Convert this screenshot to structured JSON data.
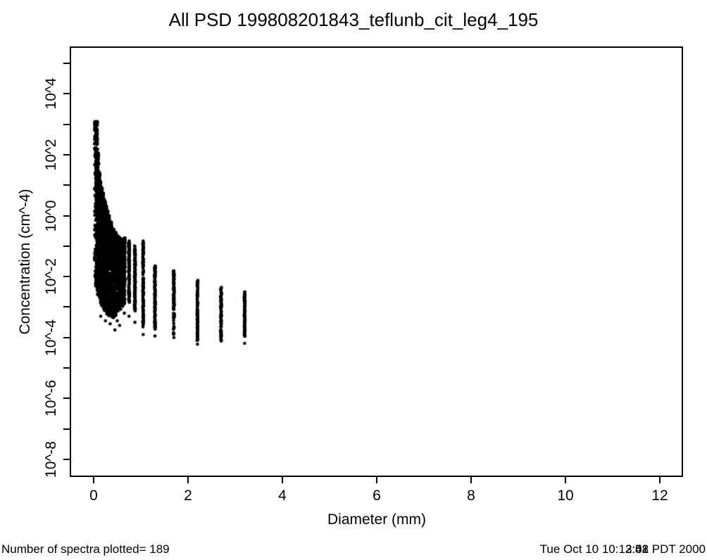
{
  "title": "All PSD 199808201843_teflunb_cit_leg4_195",
  "footer": {
    "spectra_count_label": "Number of spectra plotted= 189",
    "timestamp_prefix": "Tue Oct 10 10:1",
    "timestamp_overlap_layers": [
      "2:58",
      "2:41",
      "3:02"
    ],
    "timestamp_suffix": " PDT 2000"
  },
  "colors": {
    "marker": "#000000",
    "axis": "#000000",
    "background": "#ffffff"
  },
  "chart_data": {
    "type": "scatter",
    "title": "All PSD 199808201843_teflunb_cit_leg4_195",
    "xlabel": "Diameter (mm)",
    "ylabel": "Concentration (cm^-4)",
    "x_axis": {
      "lim": [
        -0.49,
        12.5
      ],
      "ticks": [
        0,
        2,
        4,
        6,
        8,
        10,
        12
      ],
      "tick_labels": [
        "0",
        "2",
        "4",
        "6",
        "8",
        "10",
        "12"
      ]
    },
    "y_axis": {
      "scale": "log10",
      "lim_exp": [
        -8.55,
        5.55
      ],
      "tick_exps": [
        5,
        4,
        3,
        2,
        1,
        0,
        -1,
        -2,
        -3,
        -4,
        -5,
        -6,
        -7,
        -8
      ],
      "labeled_tick_exps": [
        4,
        2,
        0,
        -2,
        -4,
        -6,
        -8
      ],
      "tick_labels": [
        "10^4",
        "10^2",
        "10^0",
        "10^-2",
        "10^-4",
        "10^-6",
        "10^-8"
      ]
    },
    "grid": false,
    "legend": null,
    "n_spectra": 189,
    "marker": {
      "shape": "filled-circle",
      "radius_px": 2.3
    },
    "bins_note": "each bin: d=diameter mm, top/bot = log10 concentration envelope, n = points drawn, skew = density bias toward top, jx = x jitter px",
    "bins": [
      {
        "d": 0.05,
        "top": 3.08,
        "bot": -2.3,
        "n": 189,
        "skew": 2.6,
        "jx": 2.2
      },
      {
        "d": 0.075,
        "top": 2.05,
        "bot": -2.5,
        "n": 189,
        "skew": 2.0,
        "jx": 2.2
      },
      {
        "d": 0.1,
        "top": 1.4,
        "bot": -2.6,
        "n": 189,
        "skew": 1.8,
        "jx": 2.2
      },
      {
        "d": 0.125,
        "top": 1.15,
        "bot": -2.7,
        "n": 189,
        "skew": 1.7,
        "jx": 2.2
      },
      {
        "d": 0.15,
        "top": 0.95,
        "bot": -2.85,
        "n": 189,
        "skew": 1.6,
        "jx": 2.2
      },
      {
        "d": 0.175,
        "top": 0.78,
        "bot": -2.95,
        "n": 189,
        "skew": 1.6,
        "jx": 2.2
      },
      {
        "d": 0.2,
        "top": 0.62,
        "bot": -3.0,
        "n": 189,
        "skew": 1.5,
        "jx": 2.2
      },
      {
        "d": 0.225,
        "top": 0.48,
        "bot": -3.1,
        "n": 185,
        "skew": 1.5,
        "jx": 2.2
      },
      {
        "d": 0.25,
        "top": 0.32,
        "bot": -3.15,
        "n": 185,
        "skew": 1.5,
        "jx": 2.2
      },
      {
        "d": 0.275,
        "top": 0.16,
        "bot": -3.2,
        "n": 180,
        "skew": 1.5,
        "jx": 2.2
      },
      {
        "d": 0.3,
        "top": 0.02,
        "bot": -3.25,
        "n": 180,
        "skew": 1.4,
        "jx": 2.2
      },
      {
        "d": 0.35,
        "top": -0.2,
        "bot": -3.3,
        "n": 175,
        "skew": 1.4,
        "jx": 2.2
      },
      {
        "d": 0.4,
        "top": -0.4,
        "bot": -3.35,
        "n": 170,
        "skew": 1.3,
        "jx": 2.2
      },
      {
        "d": 0.45,
        "top": -0.55,
        "bot": -3.3,
        "n": 165,
        "skew": 1.3,
        "jx": 2.2
      },
      {
        "d": 0.5,
        "top": -0.65,
        "bot": -3.2,
        "n": 160,
        "skew": 1.2,
        "jx": 2.2
      },
      {
        "d": 0.55,
        "top": -0.72,
        "bot": -3.1,
        "n": 155,
        "skew": 1.2,
        "jx": 2.2
      },
      {
        "d": 0.6,
        "top": -0.78,
        "bot": -3.0,
        "n": 150,
        "skew": 1.1,
        "jx": 2.2
      },
      {
        "d": 0.65,
        "top": -0.72,
        "bot": -2.9,
        "n": 145,
        "skew": 1.1,
        "jx": 1.0
      },
      {
        "d": 0.75,
        "top": -0.82,
        "bot": -2.85,
        "n": 140,
        "skew": 1.0,
        "jx": 0.6
      },
      {
        "d": 0.875,
        "top": -0.96,
        "bot": -3.13,
        "n": 135,
        "skew": 1.0,
        "jx": 0.6
      },
      {
        "d": 1.05,
        "top": -0.82,
        "bot": -3.66,
        "n": 130,
        "skew": 1.0,
        "jx": 0.6
      },
      {
        "d": 1.3,
        "top": -1.65,
        "bot": -3.77,
        "n": 120,
        "skew": 1.0,
        "jx": 0.6
      },
      {
        "d": 1.7,
        "top": -1.81,
        "bot": -3.89,
        "n": 110,
        "skew": 1.0,
        "jx": 0.6
      },
      {
        "d": 2.2,
        "top": -2.11,
        "bot": -4.12,
        "n": 100,
        "skew": 1.0,
        "jx": 0.6
      },
      {
        "d": 2.7,
        "top": -2.34,
        "bot": -4.12,
        "n": 95,
        "skew": 1.0,
        "jx": 0.6
      },
      {
        "d": 3.2,
        "top": -2.5,
        "bot": -3.96,
        "n": 90,
        "skew": 1.0,
        "jx": 0.6
      }
    ],
    "outliers": [
      [
        0.15,
        -3.3
      ],
      [
        0.25,
        -3.45
      ],
      [
        0.35,
        -3.55
      ],
      [
        0.45,
        -3.75
      ],
      [
        0.5,
        -3.45
      ],
      [
        0.55,
        -3.6
      ],
      [
        0.65,
        -3.2
      ],
      [
        0.75,
        -3.3
      ],
      [
        0.875,
        -3.5
      ],
      [
        1.05,
        -3.9
      ],
      [
        1.3,
        -3.95
      ],
      [
        1.7,
        -4.0
      ],
      [
        2.2,
        -4.22
      ],
      [
        3.2,
        -4.19
      ]
    ]
  }
}
